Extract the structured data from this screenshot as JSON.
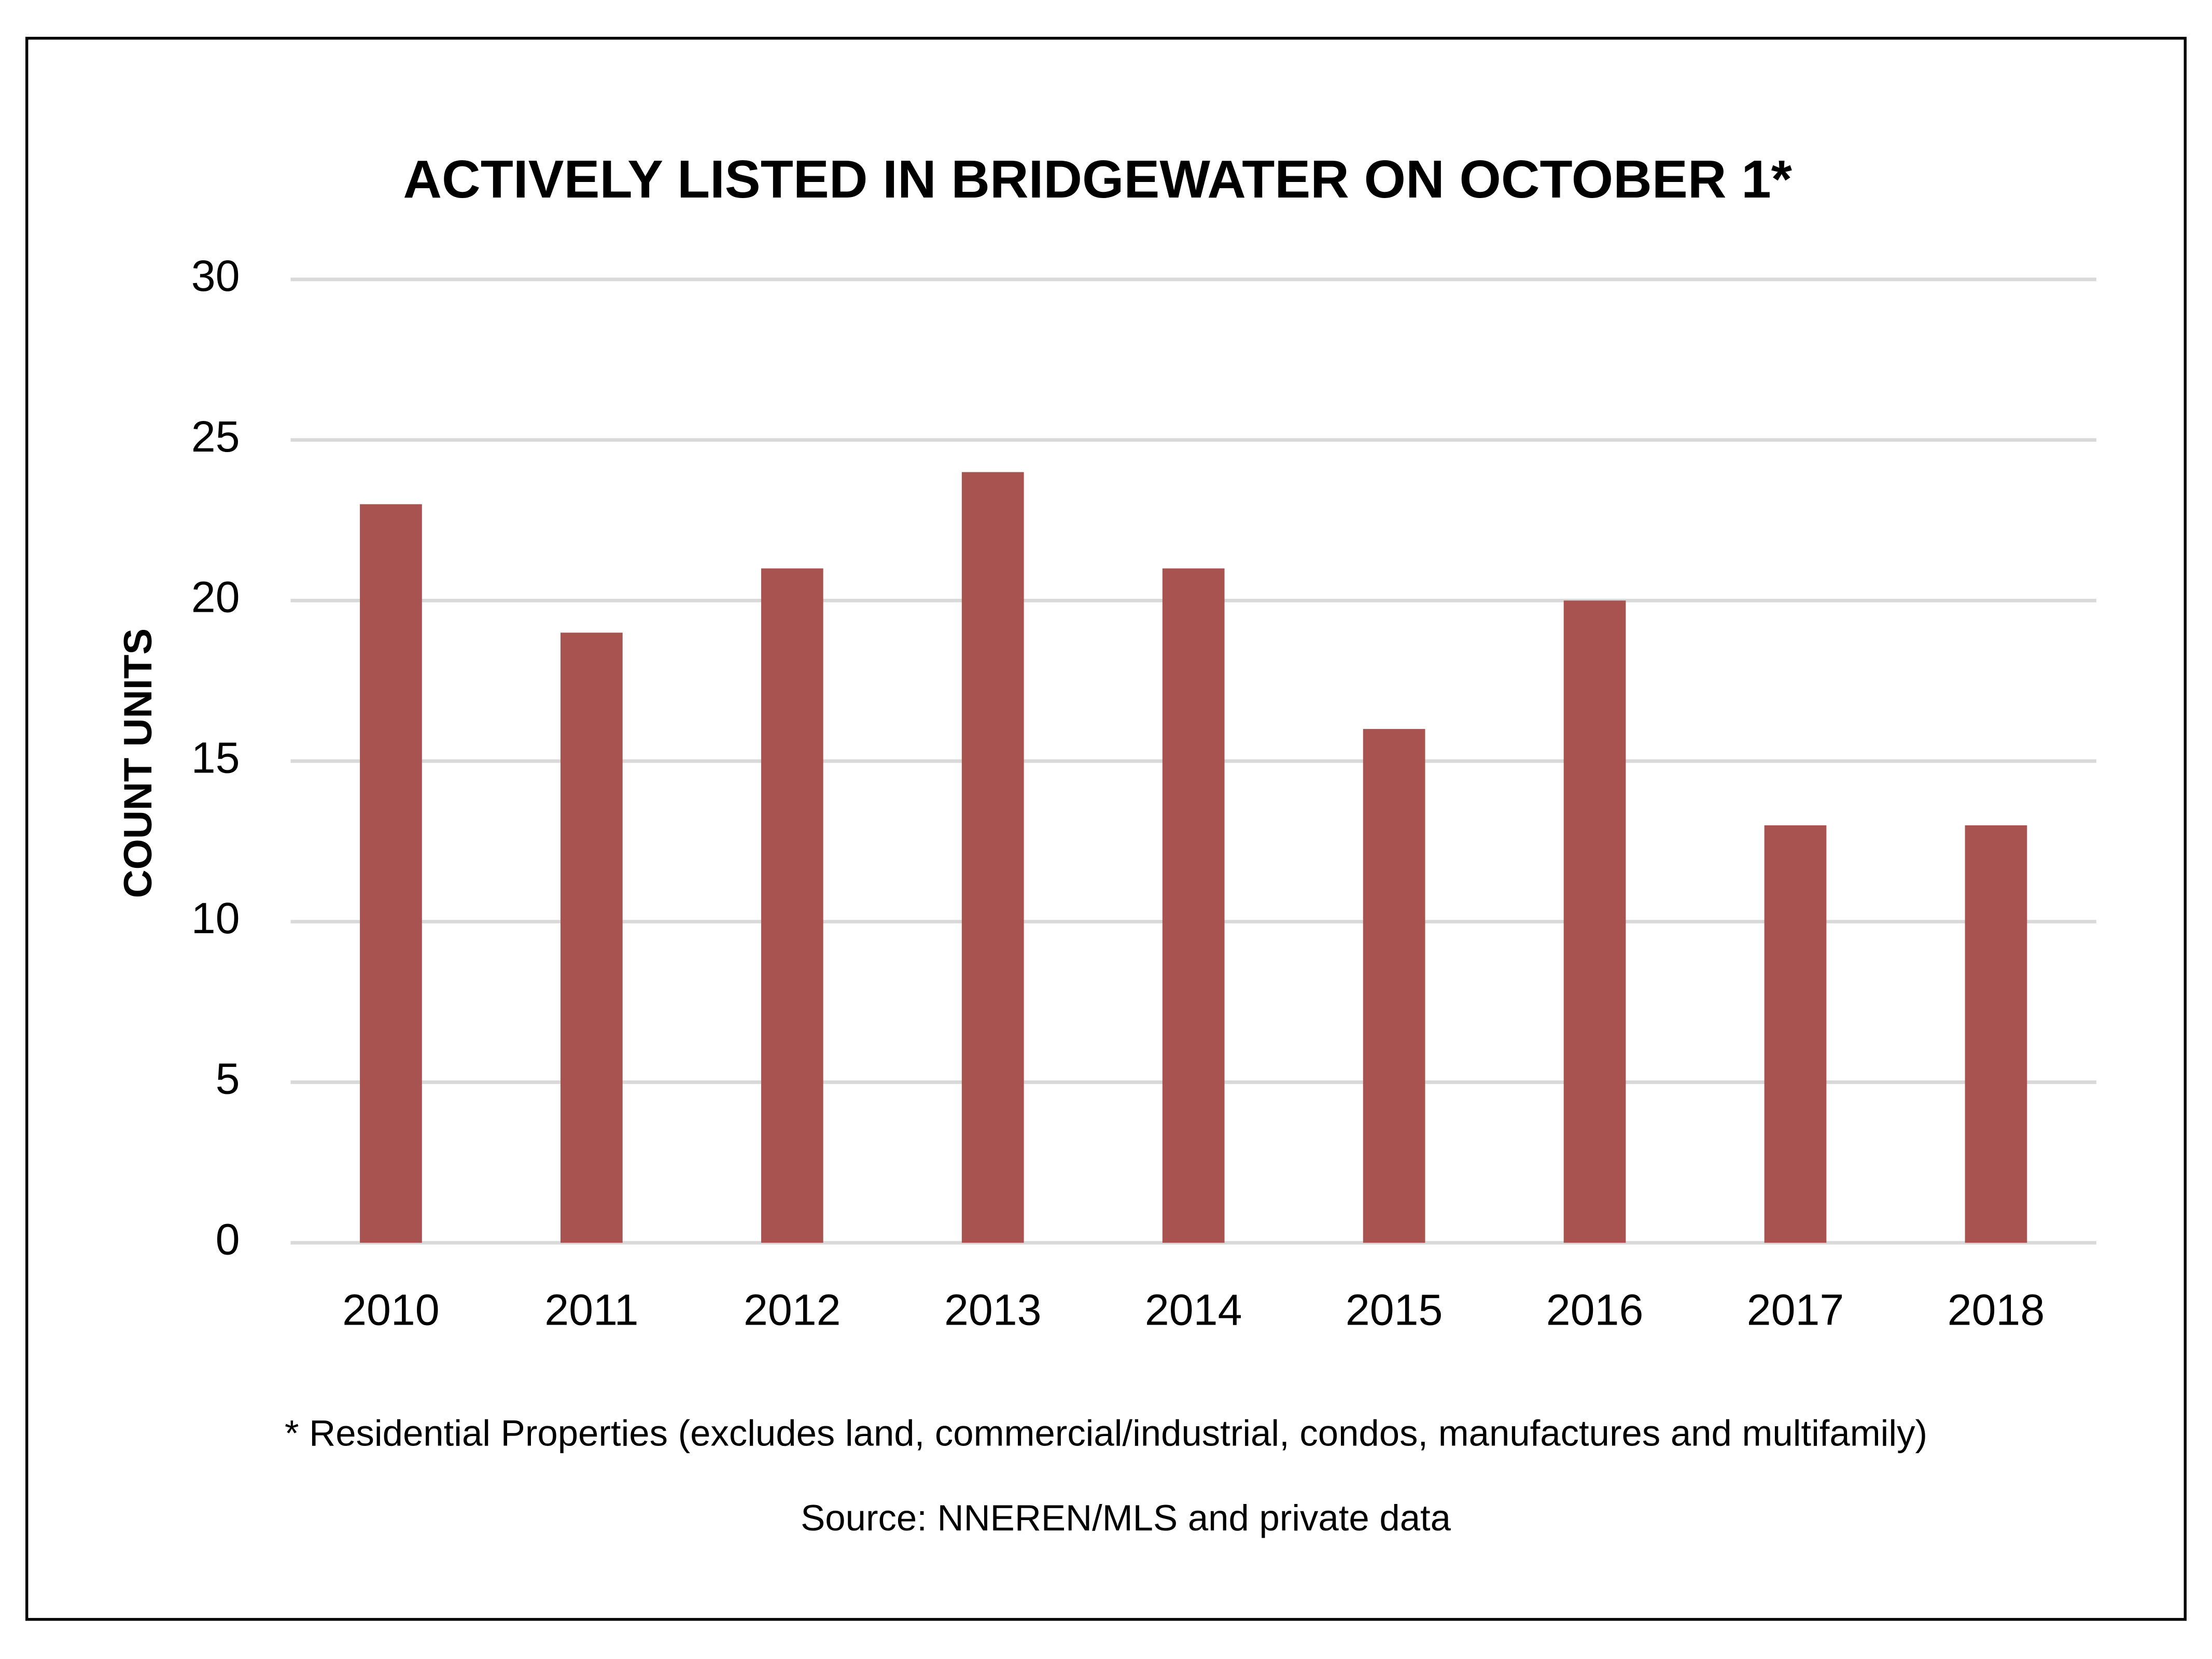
{
  "chart_data": {
    "type": "bar",
    "title": "ACTIVELY LISTED IN BRIDGEWATER ON OCTOBER 1*",
    "y_label": "COUNT UNITS",
    "categories": [
      "2010",
      "2011",
      "2012",
      "2013",
      "2014",
      "2015",
      "2016",
      "2017",
      "2018"
    ],
    "values": [
      23,
      19,
      21,
      24,
      21,
      16,
      20,
      13,
      13
    ],
    "color": "#a85350",
    "ylim": [
      0,
      30
    ],
    "yticks": [
      0,
      5,
      10,
      15,
      20,
      25,
      30
    ],
    "grid": true,
    "footnote": "* Residential Properties (excludes land, commercial/industrial, condos, manufactures and multifamily)",
    "source": "Source: NNEREN/MLS and private data"
  }
}
